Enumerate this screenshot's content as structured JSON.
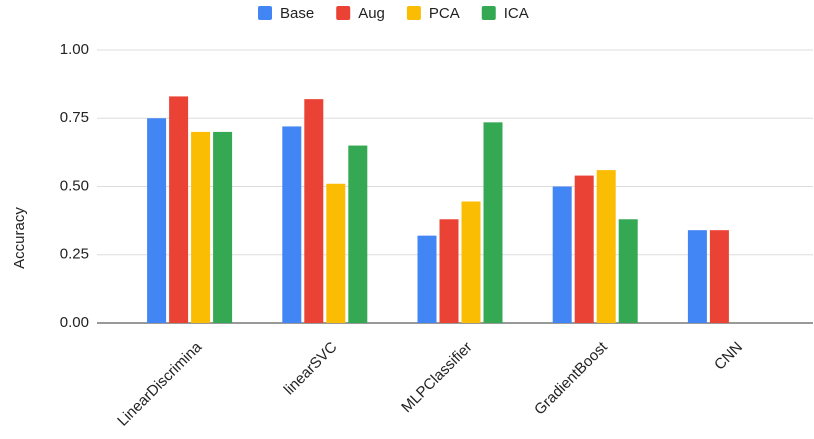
{
  "chart_data": {
    "type": "bar",
    "y_label": "Accuracy",
    "categories": [
      "LinearDiscrimina",
      "linearSVC",
      "MLPClassifier",
      "GradientBoost",
      "CNN"
    ],
    "series": [
      {
        "name": "Base",
        "color": "#4285f4",
        "values": [
          0.75,
          0.72,
          0.32,
          0.5,
          0.34
        ]
      },
      {
        "name": "Aug",
        "color": "#ea4335",
        "values": [
          0.83,
          0.82,
          0.38,
          0.54,
          0.34
        ]
      },
      {
        "name": "PCA",
        "color": "#fbbc04",
        "values": [
          0.7,
          0.51,
          0.445,
          0.56,
          null
        ]
      },
      {
        "name": "ICA",
        "color": "#34a853",
        "values": [
          0.7,
          0.65,
          0.735,
          0.38,
          null
        ]
      }
    ],
    "ylim": [
      0,
      1
    ],
    "yticks": [
      {
        "value": 0,
        "label": "0.00"
      },
      {
        "value": 0.25,
        "label": "0.25"
      },
      {
        "value": 0.5,
        "label": "0.50"
      },
      {
        "value": 0.75,
        "label": "0.75"
      },
      {
        "value": 1,
        "label": "1.00"
      }
    ],
    "grid": true,
    "legend": "top"
  }
}
